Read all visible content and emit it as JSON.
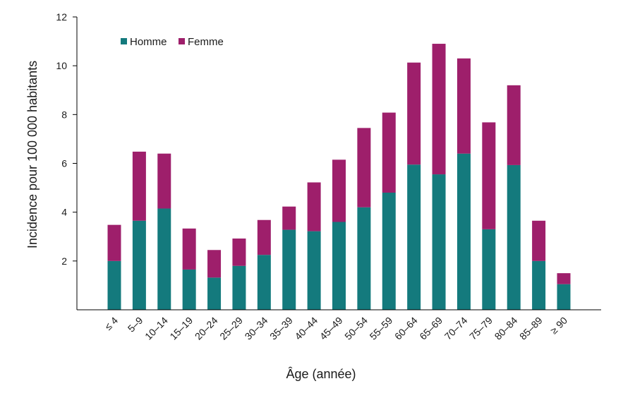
{
  "chart_data": {
    "type": "bar",
    "stacked": true,
    "title": "",
    "xlabel": "Âge (année)",
    "ylabel": "Incidence pour 100 000 habitants",
    "ylim": [
      0,
      12
    ],
    "yticks": [
      "2",
      "4",
      "6",
      "8",
      "10",
      "12"
    ],
    "grid": false,
    "legend_position": "top-left",
    "categories": [
      "≤ 4",
      "5–9",
      "10–14",
      "15–19",
      "20–24",
      "25–29",
      "30–34",
      "35–39",
      "40–44",
      "45–49",
      "50–54",
      "55–59",
      "60–64",
      "65–69",
      "70–74",
      "75–79",
      "80–84",
      "85–89",
      "≥ 90"
    ],
    "series": [
      {
        "name": "Homme",
        "color": "#147A7D",
        "values": [
          2.0,
          3.65,
          4.15,
          1.65,
          1.32,
          1.8,
          2.25,
          3.28,
          3.22,
          3.6,
          4.2,
          4.8,
          5.95,
          5.55,
          6.4,
          3.3,
          5.93,
          2.0,
          1.05
        ]
      },
      {
        "name": "Femme",
        "color": "#9E1F6B",
        "values": [
          1.48,
          2.83,
          2.25,
          1.68,
          1.13,
          1.12,
          1.43,
          0.95,
          2.0,
          2.55,
          3.25,
          3.28,
          4.18,
          5.35,
          3.9,
          4.38,
          3.27,
          1.65,
          0.45
        ]
      }
    ]
  }
}
